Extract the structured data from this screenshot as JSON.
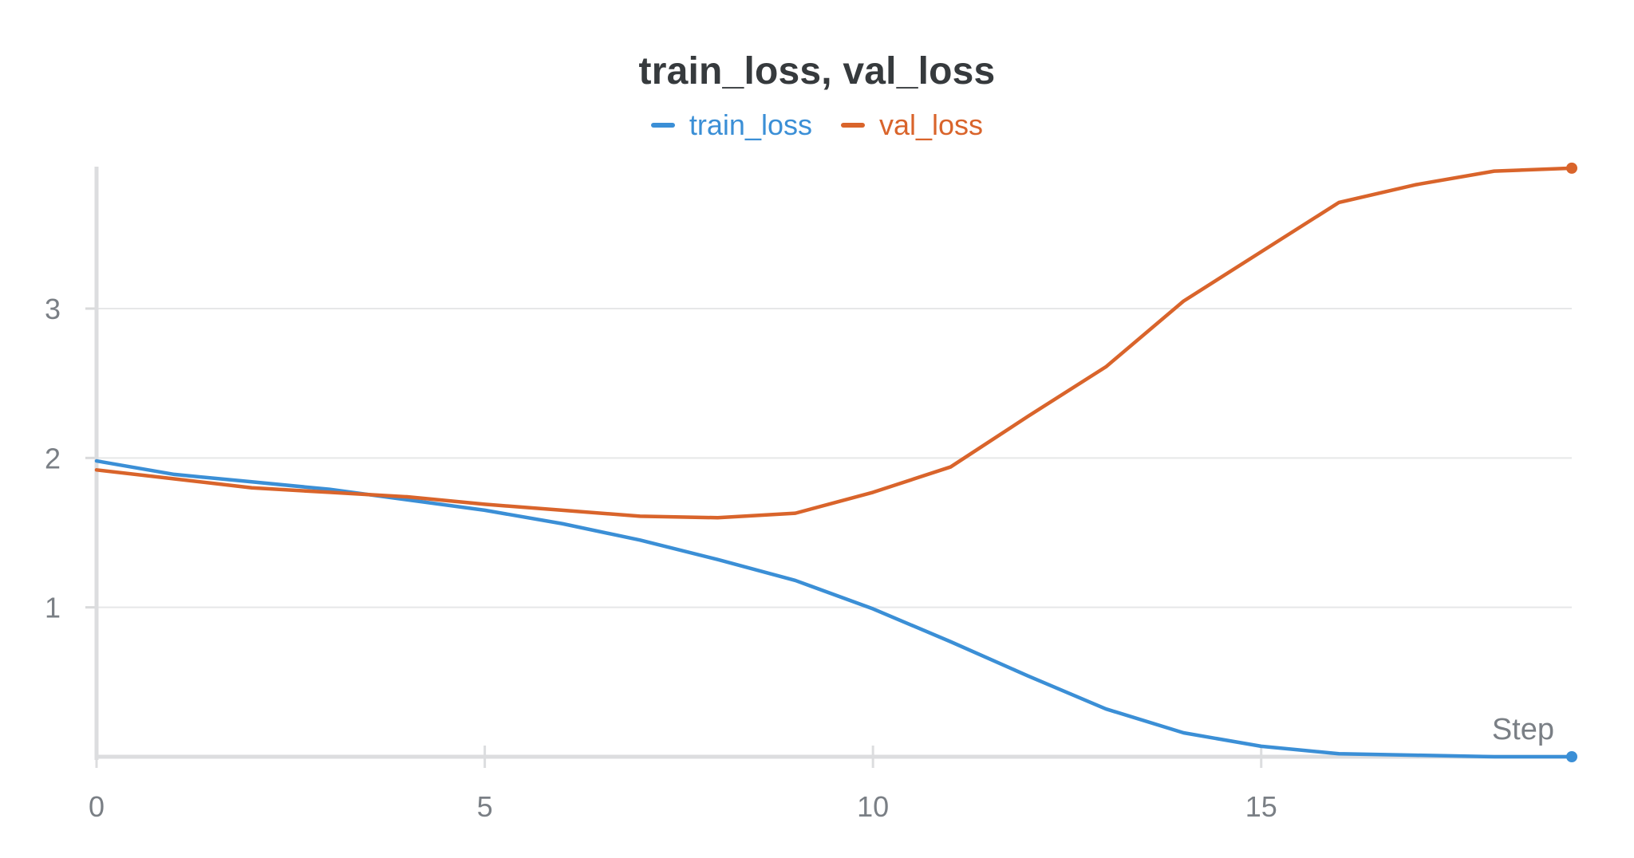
{
  "chart_data": {
    "type": "line",
    "title": "train_loss, val_loss",
    "xlabel": "Step",
    "ylabel": "",
    "xlim": [
      0,
      19
    ],
    "ylim": [
      0,
      3.95
    ],
    "x_ticks": [
      0,
      5,
      10,
      15
    ],
    "y_ticks": [
      1,
      2,
      3
    ],
    "grid": true,
    "legend_position": "top-center",
    "x": [
      0,
      1,
      2,
      3,
      4,
      5,
      6,
      7,
      8,
      9,
      10,
      11,
      12,
      13,
      14,
      15,
      16,
      17,
      18,
      19
    ],
    "series": [
      {
        "name": "train_loss",
        "color": "#3b8fd6",
        "values": [
          1.98,
          1.89,
          1.84,
          1.79,
          1.72,
          1.65,
          1.56,
          1.45,
          1.32,
          1.18,
          0.99,
          0.77,
          0.54,
          0.32,
          0.16,
          0.07,
          0.02,
          0.01,
          0.0,
          0.0
        ]
      },
      {
        "name": "val_loss",
        "color": "#d9642b",
        "values": [
          1.92,
          1.86,
          1.8,
          1.77,
          1.74,
          1.69,
          1.65,
          1.61,
          1.6,
          1.63,
          1.77,
          1.94,
          2.28,
          2.61,
          3.05,
          3.38,
          3.71,
          3.83,
          3.92,
          3.94
        ]
      }
    ]
  }
}
